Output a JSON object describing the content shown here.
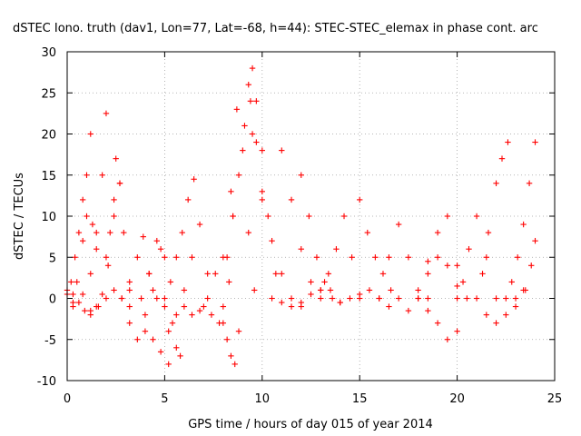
{
  "chart_data": {
    "type": "scatter",
    "title": "dSTEC Iono. truth (dav1, Lon=77, Lat=-68, h=44): STEC-STEC_elemax in phase cont. arc",
    "xlabel": "GPS time / hours of day 015 of year 2014",
    "ylabel": "dSTEC  / TECUs",
    "xlim": [
      0,
      25
    ],
    "ylim": [
      -10,
      30
    ],
    "xticks": [
      0,
      5,
      10,
      15,
      20,
      25
    ],
    "yticks": [
      -10,
      -5,
      0,
      5,
      10,
      15,
      20,
      25,
      30
    ],
    "xtick_labels": [
      "0",
      "5",
      "10",
      "15",
      "20",
      "25"
    ],
    "ytick_labels": [
      "-10",
      "-5",
      "0",
      "5",
      "10",
      "15",
      "20",
      "25",
      "30"
    ],
    "grid": true,
    "marker": "plus",
    "color": "#ff0000",
    "series": [
      {
        "x": [
          0.0,
          0.3,
          0.6,
          0.9,
          1.2,
          1.5,
          1.8,
          2.1,
          2.4,
          2.7
        ],
        "y": [
          1.0,
          0.5,
          -0.5,
          -1.5,
          -2.0,
          -1.0,
          0.5,
          4.0,
          10.0,
          14.0
        ]
      },
      {
        "x": [
          0.0,
          0.2,
          0.4,
          0.6,
          0.8,
          1.0,
          1.2
        ],
        "y": [
          0.5,
          2.0,
          5.0,
          8.0,
          12.0,
          15.0,
          20.0
        ]
      },
      {
        "x": [
          0.3,
          0.5,
          0.8,
          1.0,
          1.3,
          1.5
        ],
        "y": [
          -1.0,
          2.0,
          7.0,
          10.0,
          9.0,
          6.0
        ]
      },
      {
        "x": [
          0.3,
          0.8,
          1.2,
          1.5,
          1.8,
          2.0
        ],
        "y": [
          -0.5,
          0.5,
          3.0,
          8.0,
          15.0,
          22.5
        ]
      },
      {
        "x": [
          1.2,
          1.6,
          2.0,
          2.4,
          2.8,
          3.2
        ],
        "y": [
          -1.5,
          -1.0,
          0.0,
          1.0,
          0.0,
          -1.0
        ]
      },
      {
        "x": [
          2.0,
          2.2,
          2.4,
          2.5,
          2.7,
          2.9,
          3.2
        ],
        "y": [
          5.0,
          8.0,
          12.0,
          17.0,
          14.0,
          8.0,
          2.0
        ]
      },
      {
        "x": [
          2.8,
          3.2,
          3.6,
          4.0,
          4.4,
          4.8
        ],
        "y": [
          0.0,
          -3.0,
          -5.0,
          -4.0,
          1.0,
          6.0
        ]
      },
      {
        "x": [
          3.2,
          3.6,
          3.9,
          4.2,
          4.6,
          5.0
        ],
        "y": [
          1.0,
          5.0,
          7.5,
          3.0,
          0.0,
          -1.0
        ]
      },
      {
        "x": [
          3.8,
          4.2,
          4.6,
          5.0,
          5.4,
          5.8
        ],
        "y": [
          0.0,
          3.0,
          7.0,
          5.0,
          -3.0,
          -7.0
        ]
      },
      {
        "x": [
          4.0,
          4.4,
          4.8,
          5.2,
          5.6
        ],
        "y": [
          -2.0,
          -5.0,
          -6.5,
          -8.0,
          -6.0
        ]
      },
      {
        "x": [
          5.0,
          5.3,
          5.6,
          5.9,
          6.2,
          6.5
        ],
        "y": [
          0.0,
          2.0,
          5.0,
          8.0,
          12.0,
          14.5
        ]
      },
      {
        "x": [
          5.2,
          5.6,
          6.0,
          6.4,
          6.8,
          7.2
        ],
        "y": [
          -4.0,
          -2.0,
          1.0,
          5.0,
          9.0,
          3.0
        ]
      },
      {
        "x": [
          6.0,
          6.4,
          6.8,
          7.2,
          7.6,
          8.0
        ],
        "y": [
          -1.0,
          -2.0,
          -1.5,
          0.0,
          3.0,
          5.0
        ]
      },
      {
        "x": [
          7.0,
          7.4,
          7.8,
          8.0,
          8.2,
          8.4
        ],
        "y": [
          -1.0,
          -2.0,
          -3.0,
          -1.0,
          5.0,
          13.0
        ]
      },
      {
        "x": [
          8.0,
          8.2,
          8.4,
          8.6,
          8.8
        ],
        "y": [
          -3.0,
          -5.0,
          -7.0,
          -8.0,
          -4.0
        ]
      },
      {
        "x": [
          8.5,
          8.8,
          9.1,
          9.4,
          9.7,
          10.0
        ],
        "y": [
          10.0,
          15.0,
          21.0,
          24.0,
          19.0,
          12.0
        ]
      },
      {
        "x": [
          8.3,
          8.5,
          8.7,
          9.0,
          9.3,
          9.6
        ],
        "y": [
          2.0,
          10.0,
          23.0,
          18.0,
          8.0,
          1.0
        ]
      },
      {
        "x": [
          9.3,
          9.5,
          9.7,
          10.0,
          10.3,
          10.7
        ],
        "y": [
          26.0,
          28.0,
          24.0,
          18.0,
          10.0,
          3.0
        ]
      },
      {
        "x": [
          9.5,
          10.0,
          10.5,
          11.0,
          11.5,
          12.0
        ],
        "y": [
          20.0,
          13.0,
          7.0,
          3.0,
          0.0,
          -1.0
        ]
      },
      {
        "x": [
          10.5,
          11.0,
          11.5,
          12.0,
          12.5,
          13.0
        ],
        "y": [
          0.0,
          -0.5,
          -1.0,
          -0.5,
          0.5,
          1.0
        ]
      },
      {
        "x": [
          11.0,
          11.5,
          12.0,
          12.5,
          13.0,
          13.5
        ],
        "y": [
          18.0,
          12.0,
          6.0,
          2.0,
          0.0,
          1.0
        ]
      },
      {
        "x": [
          12.0,
          12.4,
          12.8,
          13.2,
          13.6,
          14.0
        ],
        "y": [
          15.0,
          10.0,
          5.0,
          2.0,
          0.0,
          -0.5
        ]
      },
      {
        "x": [
          13.0,
          13.4,
          13.8,
          14.2,
          14.6,
          15.0
        ],
        "y": [
          1.0,
          3.0,
          6.0,
          10.0,
          5.0,
          0.0
        ]
      },
      {
        "x": [
          14.0,
          14.5,
          15.0,
          15.5,
          16.0,
          16.5
        ],
        "y": [
          -0.5,
          0.0,
          0.5,
          1.0,
          0.0,
          -1.0
        ]
      },
      {
        "x": [
          15.0,
          15.4,
          15.8,
          16.2,
          16.6,
          17.0
        ],
        "y": [
          12.0,
          8.0,
          5.0,
          3.0,
          1.0,
          0.0
        ]
      },
      {
        "x": [
          16.0,
          16.5,
          17.0,
          17.5,
          18.0,
          18.5
        ],
        "y": [
          0.0,
          5.0,
          9.0,
          5.0,
          1.0,
          0.0
        ]
      },
      {
        "x": [
          17.5,
          18.0,
          18.5,
          19.0,
          19.5,
          20.0
        ],
        "y": [
          -1.5,
          0.0,
          3.0,
          8.0,
          10.0,
          4.0
        ]
      },
      {
        "x": [
          18.0,
          18.5,
          19.0,
          19.5,
          20.0
        ],
        "y": [
          0.0,
          -1.5,
          -3.0,
          -5.0,
          -4.0
        ]
      },
      {
        "x": [
          18.5,
          19.0,
          19.5,
          20.0,
          20.5
        ],
        "y": [
          4.5,
          5.0,
          4.0,
          1.5,
          0.0
        ]
      },
      {
        "x": [
          20.0,
          20.3,
          20.6,
          21.0,
          21.5,
          22.0
        ],
        "y": [
          0.0,
          2.0,
          6.0,
          10.0,
          5.0,
          0.0
        ]
      },
      {
        "x": [
          21.0,
          21.3,
          21.6,
          22.0,
          22.3,
          22.6
        ],
        "y": [
          0.0,
          3.0,
          8.0,
          14.0,
          17.0,
          19.0
        ]
      },
      {
        "x": [
          21.5,
          22.0,
          22.5,
          23.0,
          23.5
        ],
        "y": [
          -2.0,
          -3.0,
          -2.0,
          0.0,
          1.0
        ]
      },
      {
        "x": [
          22.5,
          22.8,
          23.1,
          23.4,
          23.7,
          24.0
        ],
        "y": [
          0.0,
          2.0,
          5.0,
          9.0,
          14.0,
          19.0
        ]
      },
      {
        "x": [
          23.0,
          23.4,
          23.8,
          24.0
        ],
        "y": [
          -1.0,
          1.0,
          4.0,
          7.0
        ]
      }
    ]
  }
}
